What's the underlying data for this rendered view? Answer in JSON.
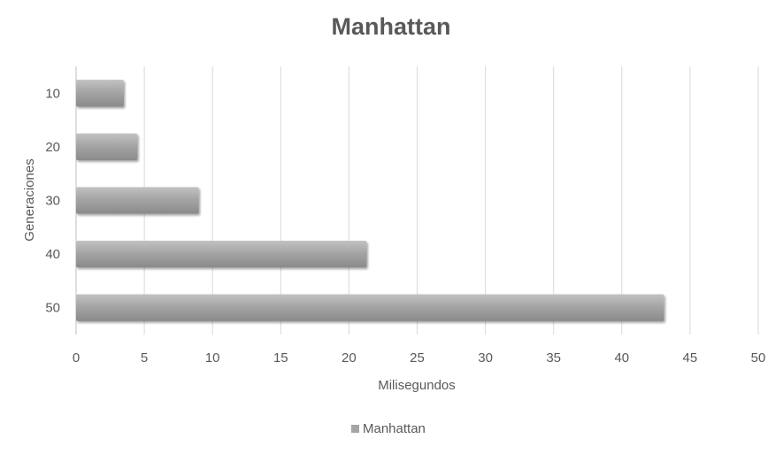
{
  "chart_data": {
    "type": "bar",
    "orientation": "horizontal",
    "title": "Manhattan",
    "xlabel": "Milisegundos",
    "ylabel": "Generaciones",
    "categories": [
      "10",
      "20",
      "30",
      "40",
      "50"
    ],
    "series": [
      {
        "name": "Manhattan",
        "values": [
          3.5,
          4.5,
          9.0,
          21.3,
          43.1
        ]
      }
    ],
    "xlim": [
      0,
      50
    ],
    "x_ticks": [
      "0",
      "5",
      "10",
      "15",
      "20",
      "25",
      "30",
      "35",
      "40",
      "45",
      "50"
    ],
    "grid": true,
    "legend": "bottom",
    "colors": {
      "bar": "#a5a5a5",
      "bar_shadow": "#7f7f7f"
    }
  }
}
